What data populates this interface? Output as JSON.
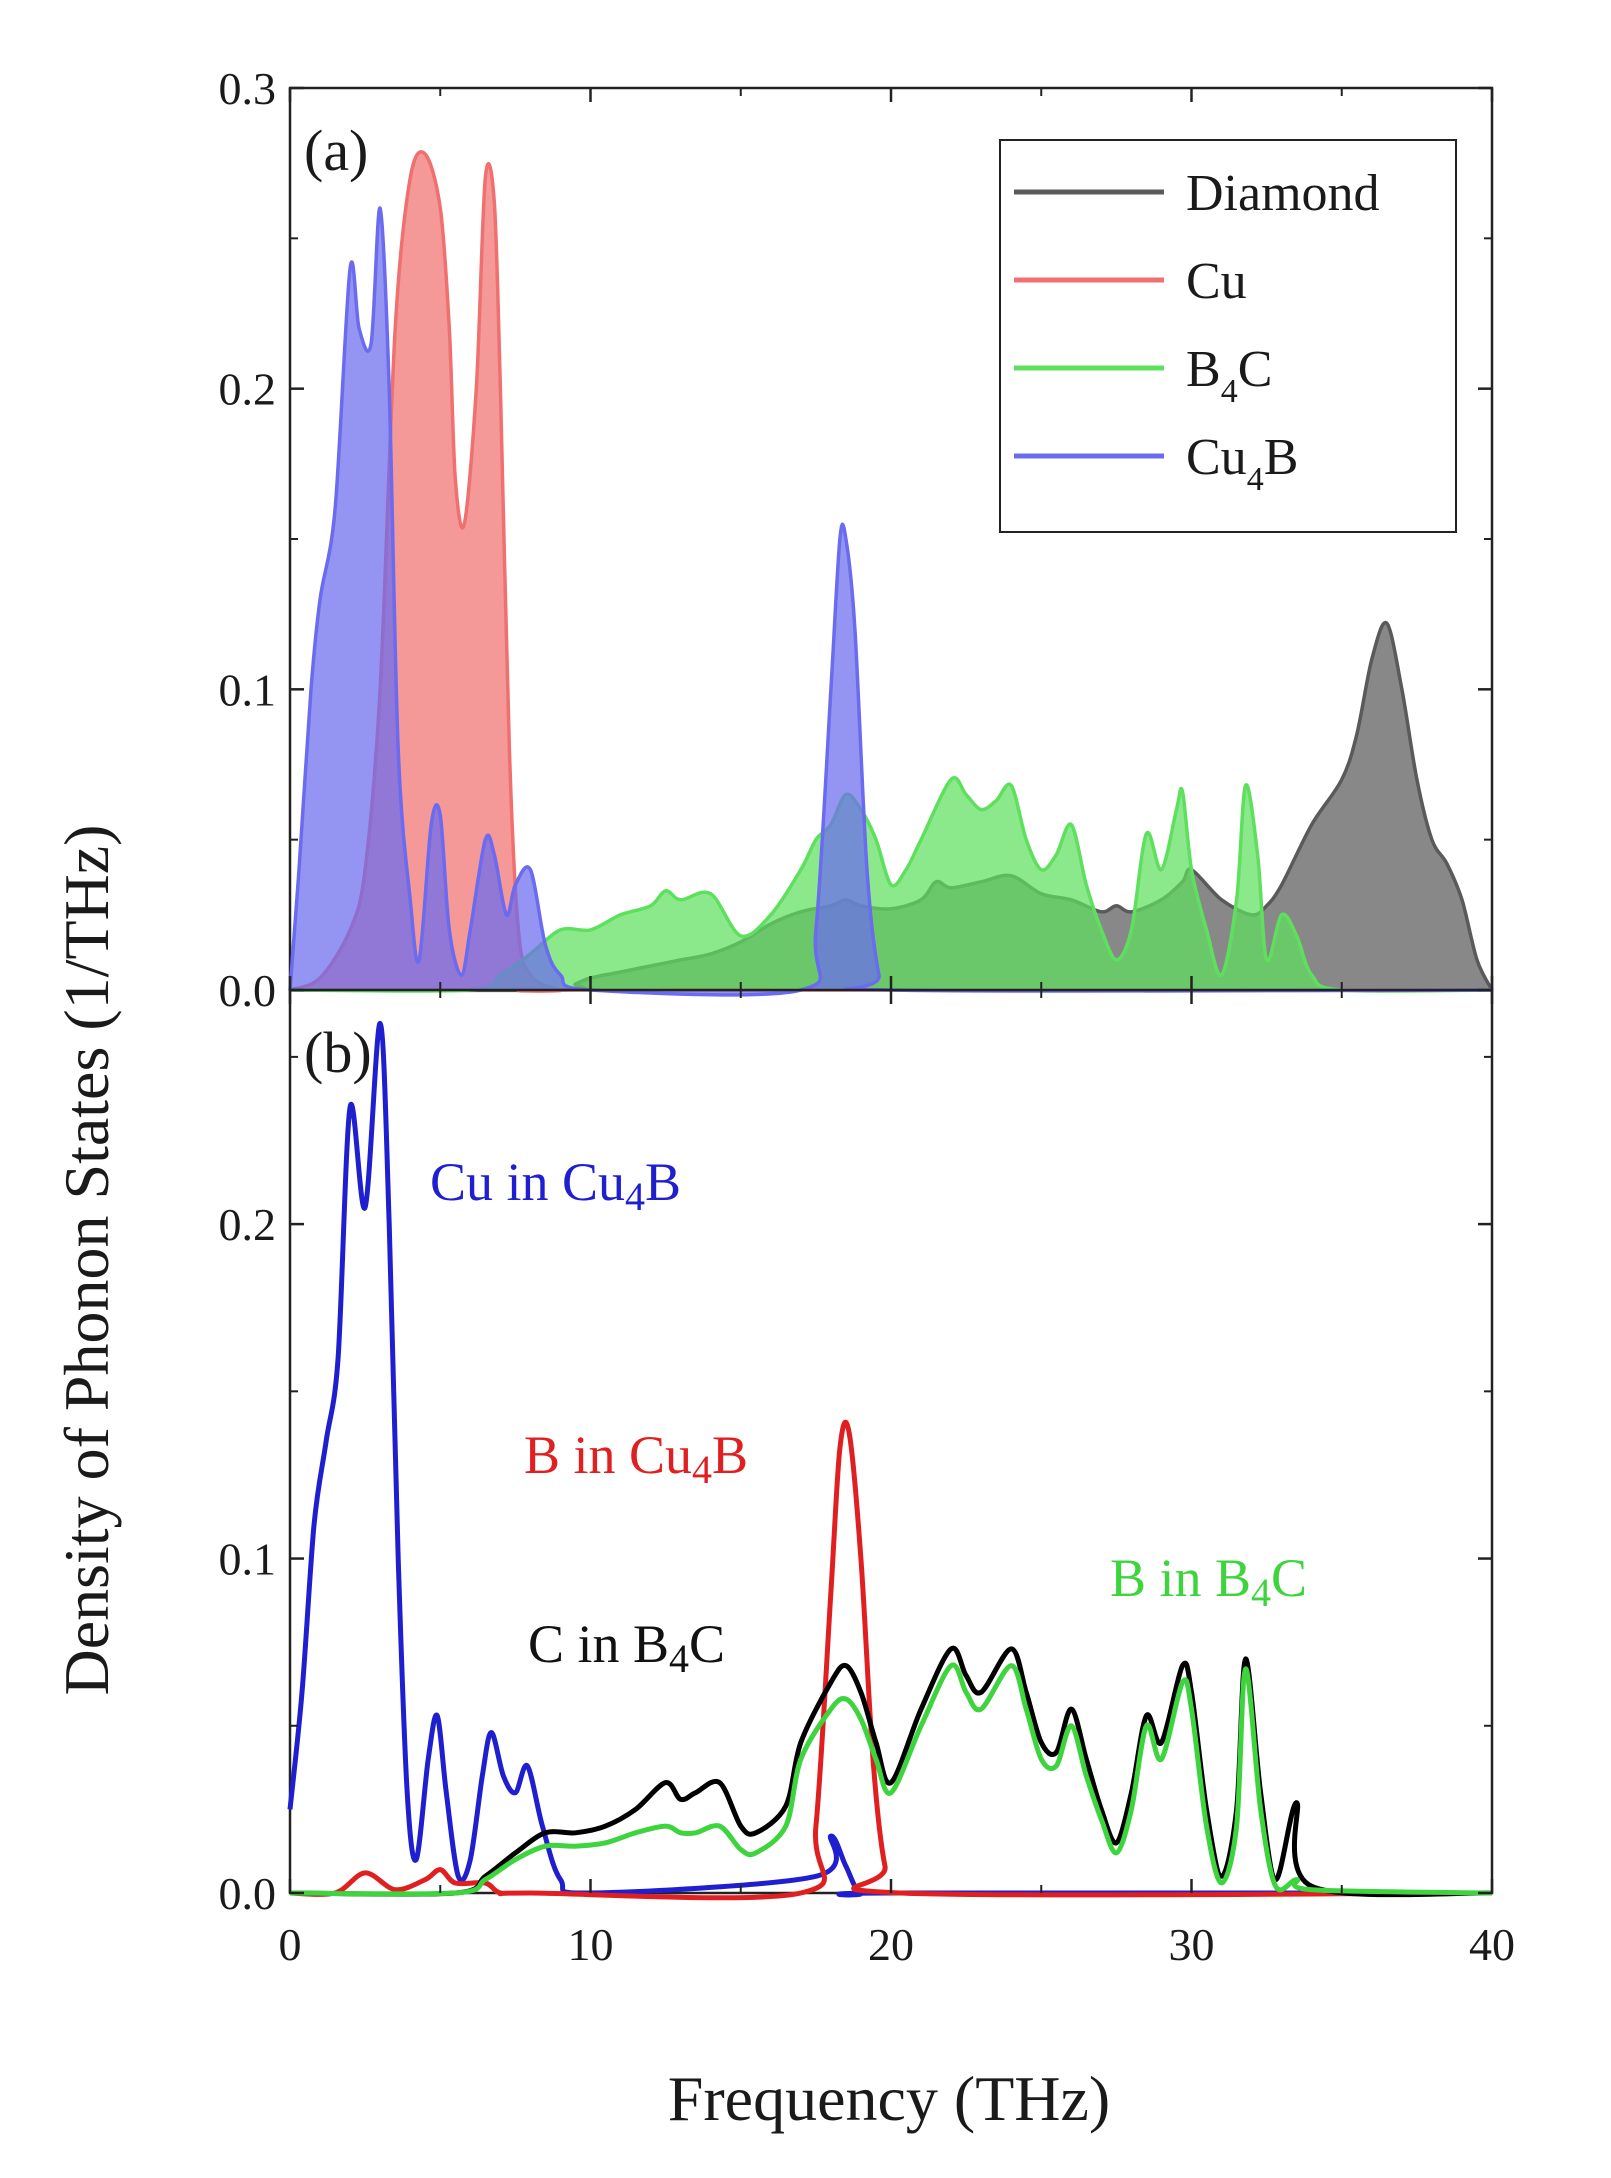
{
  "chart_data": {
    "type": "area",
    "x_axis": {
      "label": "Frequency (THz)",
      "range": [
        0,
        40
      ],
      "ticks": [
        0,
        10,
        20,
        30,
        40
      ],
      "tick_labels": [
        "0",
        "10",
        "20",
        "30",
        "40"
      ]
    },
    "y_axis_label": "Density of Phonon States (1/THz)",
    "panels": [
      {
        "id": "a",
        "tag": "(a)",
        "type": "area",
        "ylim": [
          0,
          0.3
        ],
        "yticks": [
          0.0,
          0.1,
          0.2,
          0.3
        ],
        "ytick_labels": [
          "0.0",
          "0.1",
          "0.2",
          "0.3"
        ],
        "legend": {
          "position": "top-right",
          "entries": [
            {
              "label": "Diamond",
              "subscript": ""
            },
            {
              "label": "Cu",
              "subscript": ""
            },
            {
              "label": "BC",
              "main": "B",
              "subscript": "4",
              "tail": "C"
            },
            {
              "label": "CuB",
              "main": "Cu",
              "subscript": "4",
              "tail": "B"
            }
          ]
        },
        "series": [
          {
            "name": "Diamond",
            "color": "#5a5a5a",
            "x": [
              0,
              9,
              9.5,
              10,
              11,
              12,
              13,
              14,
              15,
              16,
              17,
              18,
              18.5,
              19,
              20,
              21,
              21.5,
              22,
              23,
              24,
              25,
              26,
              27,
              27.5,
              28,
              29,
              29.7,
              30,
              31,
              32,
              32.5,
              33,
              34,
              35,
              35.5,
              36,
              36.5,
              37,
              37.5,
              38,
              38.5,
              39,
              39.5,
              40
            ],
            "y": [
              0,
              0,
              0.002,
              0.004,
              0.006,
              0.008,
              0.01,
              0.012,
              0.016,
              0.022,
              0.026,
              0.028,
              0.03,
              0.028,
              0.027,
              0.03,
              0.036,
              0.034,
              0.036,
              0.038,
              0.032,
              0.03,
              0.026,
              0.028,
              0.026,
              0.03,
              0.036,
              0.04,
              0.03,
              0.025,
              0.028,
              0.035,
              0.055,
              0.07,
              0.085,
              0.11,
              0.122,
              0.1,
              0.07,
              0.05,
              0.042,
              0.03,
              0.01,
              0
            ]
          },
          {
            "name": "Cu",
            "color": "#f07070",
            "x": [
              0,
              1,
              2,
              2.5,
              3,
              3.5,
              4,
              4.5,
              5,
              5.3,
              5.5,
              5.8,
              6.2,
              6.5,
              6.8,
              7,
              7.3,
              7.6,
              8,
              9,
              10,
              40
            ],
            "y": [
              0,
              0.004,
              0.02,
              0.04,
              0.1,
              0.22,
              0.27,
              0.278,
              0.26,
              0.22,
              0.17,
              0.155,
              0.2,
              0.27,
              0.262,
              0.2,
              0.08,
              0.02,
              0.005,
              0,
              0,
              0
            ]
          },
          {
            "name": "B4C",
            "color": "#5ee05e",
            "x": [
              0,
              6,
              7,
              8,
              9,
              10,
              11,
              12,
              12.5,
              13,
              14,
              15,
              16,
              17,
              17.5,
              18,
              18.5,
              19,
              19.5,
              20,
              20.5,
              21,
              22,
              22.5,
              23,
              23.5,
              24,
              24.5,
              25,
              25.5,
              26,
              26.5,
              27,
              27.5,
              28,
              28.5,
              29,
              29.5,
              29.7,
              30,
              30.5,
              31,
              31.5,
              31.8,
              32.2,
              32.5,
              33,
              33.5,
              34,
              35,
              40
            ],
            "y": [
              0,
              0,
              0.005,
              0.012,
              0.02,
              0.02,
              0.025,
              0.028,
              0.033,
              0.03,
              0.032,
              0.018,
              0.025,
              0.04,
              0.05,
              0.055,
              0.065,
              0.06,
              0.05,
              0.035,
              0.04,
              0.05,
              0.07,
              0.065,
              0.06,
              0.063,
              0.068,
              0.05,
              0.04,
              0.045,
              0.055,
              0.035,
              0.02,
              0.01,
              0.02,
              0.052,
              0.04,
              0.06,
              0.066,
              0.04,
              0.02,
              0.005,
              0.03,
              0.068,
              0.045,
              0.01,
              0.025,
              0.018,
              0.005,
              0,
              0
            ]
          },
          {
            "name": "Cu4B",
            "color": "#6b6bef",
            "x": [
              0,
              0.3,
              0.7,
              1,
              1.5,
              2,
              2.3,
              2.7,
              3,
              3.3,
              3.6,
              4,
              4.3,
              4.7,
              5,
              5.3,
              5.7,
              6,
              6.5,
              6.8,
              7.2,
              7.5,
              8,
              8.5,
              9,
              10,
              17,
              17.5,
              18,
              18.3,
              18.5,
              18.8,
              19.2,
              19.6,
              20,
              40
            ],
            "y": [
              0,
              0.04,
              0.1,
              0.13,
              0.16,
              0.24,
              0.22,
              0.215,
              0.26,
              0.2,
              0.08,
              0.03,
              0.01,
              0.055,
              0.058,
              0.02,
              0.005,
              0.02,
              0.05,
              0.045,
              0.025,
              0.035,
              0.04,
              0.015,
              0.005,
              0,
              0,
              0.02,
              0.1,
              0.15,
              0.15,
              0.12,
              0.04,
              0.005,
              0,
              0
            ]
          }
        ]
      },
      {
        "id": "b",
        "tag": "(b)",
        "type": "line",
        "ylim": [
          0,
          0.27
        ],
        "yticks": [
          0.0,
          0.1,
          0.2
        ],
        "ytick_labels": [
          "0.0",
          "0.1",
          "0.2"
        ],
        "annotations": [
          {
            "id": "cu-in-cu4b",
            "color": "#1f1fd0",
            "pre": "Cu in Cu",
            "sub": "4",
            "post": "B"
          },
          {
            "id": "b-in-cu4b",
            "color": "#e02020",
            "pre": "B in Cu",
            "sub": "4",
            "post": "B"
          },
          {
            "id": "c-in-b4c",
            "color": "#111111",
            "pre": "C in B",
            "sub": "4",
            "post": "C"
          },
          {
            "id": "b-in-b4c",
            "color": "#3ed43e",
            "pre": "B in B",
            "sub": "4",
            "post": "C"
          }
        ],
        "series": [
          {
            "name": "Cu in Cu4B",
            "color": "#1f1fd0",
            "x": [
              0,
              0.4,
              0.8,
              1.2,
              1.6,
              2,
              2.5,
              3,
              3.3,
              3.6,
              3.9,
              4.2,
              4.6,
              4.9,
              5.2,
              5.6,
              6,
              6.4,
              6.7,
              7.1,
              7.5,
              7.9,
              8.4,
              9,
              10,
              17.5,
              18,
              18.5,
              19,
              20,
              40
            ],
            "y": [
              0.025,
              0.06,
              0.11,
              0.135,
              0.16,
              0.235,
              0.205,
              0.26,
              0.2,
              0.1,
              0.03,
              0.01,
              0.04,
              0.053,
              0.03,
              0.005,
              0.01,
              0.035,
              0.048,
              0.035,
              0.03,
              0.038,
              0.02,
              0.004,
              0,
              0.005,
              0.017,
              0.008,
              0,
              0,
              0
            ]
          },
          {
            "name": "B in Cu4B",
            "color": "#e02020",
            "x": [
              0,
              1.5,
              2.5,
              3.5,
              4.5,
              5,
              5.5,
              6.5,
              7,
              8,
              17,
              17.5,
              18,
              18.3,
              18.6,
              19,
              19.4,
              19.8,
              20.3,
              40
            ],
            "y": [
              0,
              0,
              0.006,
              0.001,
              0.004,
              0.007,
              0.003,
              0.003,
              0,
              0,
              0,
              0.02,
              0.09,
              0.133,
              0.138,
              0.1,
              0.04,
              0.008,
              0,
              0
            ]
          },
          {
            "name": "C in B4C",
            "color": "#000000",
            "x": [
              0,
              5.5,
              6.5,
              7.5,
              8.5,
              9.5,
              10.5,
              11.5,
              12.5,
              13,
              13.5,
              14.3,
              15,
              15.5,
              16.5,
              17,
              18,
              18.5,
              19,
              19.5,
              20,
              21,
              22,
              22.5,
              23,
              24,
              24.5,
              25,
              25.5,
              26,
              26.5,
              27,
              27.5,
              28,
              28.5,
              29,
              29.7,
              30,
              30.5,
              31,
              31.5,
              31.8,
              32.3,
              32.8,
              33.5,
              34,
              40
            ],
            "y": [
              0,
              0,
              0.005,
              0.012,
              0.018,
              0.018,
              0.02,
              0.025,
              0.033,
              0.028,
              0.03,
              0.033,
              0.02,
              0.018,
              0.026,
              0.045,
              0.063,
              0.068,
              0.06,
              0.045,
              0.033,
              0.055,
              0.073,
              0.065,
              0.06,
              0.073,
              0.06,
              0.045,
              0.042,
              0.055,
              0.04,
              0.025,
              0.015,
              0.03,
              0.053,
              0.045,
              0.068,
              0.06,
              0.025,
              0.005,
              0.025,
              0.07,
              0.03,
              0.004,
              0.027,
              0.002,
              0
            ]
          },
          {
            "name": "B in B4C",
            "color": "#3ed43e",
            "x": [
              0,
              5.5,
              6.5,
              7.5,
              8.5,
              9.5,
              10.5,
              11.5,
              12.5,
              13,
              13.5,
              14.3,
              15,
              15.5,
              16.5,
              17,
              18,
              18.5,
              19,
              19.5,
              20,
              21,
              22,
              22.5,
              23,
              24,
              24.5,
              25,
              25.5,
              26,
              26.5,
              27,
              27.5,
              28,
              28.5,
              29,
              29.7,
              30,
              30.5,
              31,
              31.5,
              31.8,
              32.3,
              32.8,
              33.5,
              34,
              40
            ],
            "y": [
              0,
              0,
              0.004,
              0.01,
              0.014,
              0.014,
              0.015,
              0.018,
              0.02,
              0.018,
              0.018,
              0.02,
              0.013,
              0.012,
              0.02,
              0.04,
              0.055,
              0.058,
              0.052,
              0.04,
              0.03,
              0.05,
              0.068,
              0.06,
              0.055,
              0.068,
              0.055,
              0.04,
              0.038,
              0.05,
              0.035,
              0.022,
              0.012,
              0.025,
              0.05,
              0.04,
              0.063,
              0.055,
              0.02,
              0.003,
              0.02,
              0.067,
              0.025,
              0.002,
              0.004,
              0.001,
              0
            ]
          }
        ]
      }
    ]
  }
}
